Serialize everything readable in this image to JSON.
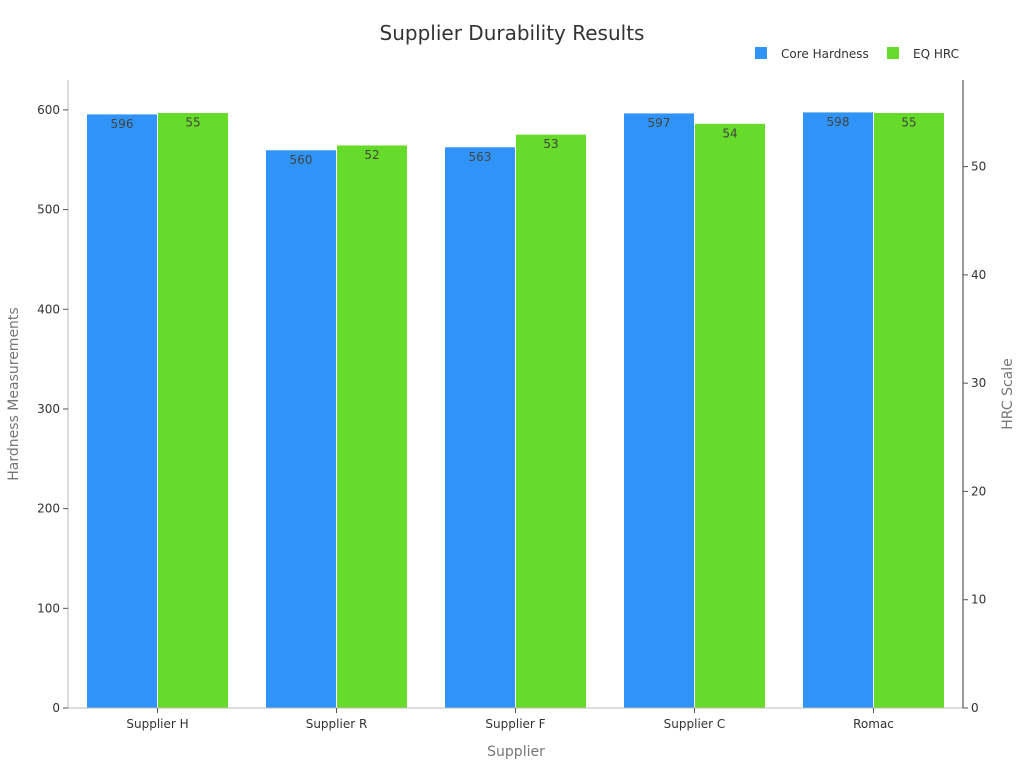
{
  "chart_data": {
    "type": "bar",
    "title": "Supplier Durability Results",
    "xlabel": "Supplier",
    "ylabel": "Hardness Measurements",
    "y2label": "HRC Scale",
    "categories": [
      "Supplier H",
      "Supplier R",
      "Supplier F",
      "Supplier C",
      "Romac"
    ],
    "series": [
      {
        "name": "Core Hardness",
        "axis": "left",
        "color": "#2f93f7",
        "values": [
          596,
          560,
          563,
          597,
          598
        ]
      },
      {
        "name": "EQ HRC",
        "axis": "right",
        "color": "#66db29",
        "values": [
          55,
          52,
          53,
          54,
          55
        ]
      }
    ],
    "ylim": [
      0,
      630
    ],
    "yticks": [
      0,
      100,
      200,
      300,
      400,
      500,
      600
    ],
    "y2lim": [
      0,
      58
    ],
    "y2ticks": [
      0,
      10,
      20,
      30,
      40,
      50
    ],
    "legend_position": "top-right",
    "grid": false
  }
}
